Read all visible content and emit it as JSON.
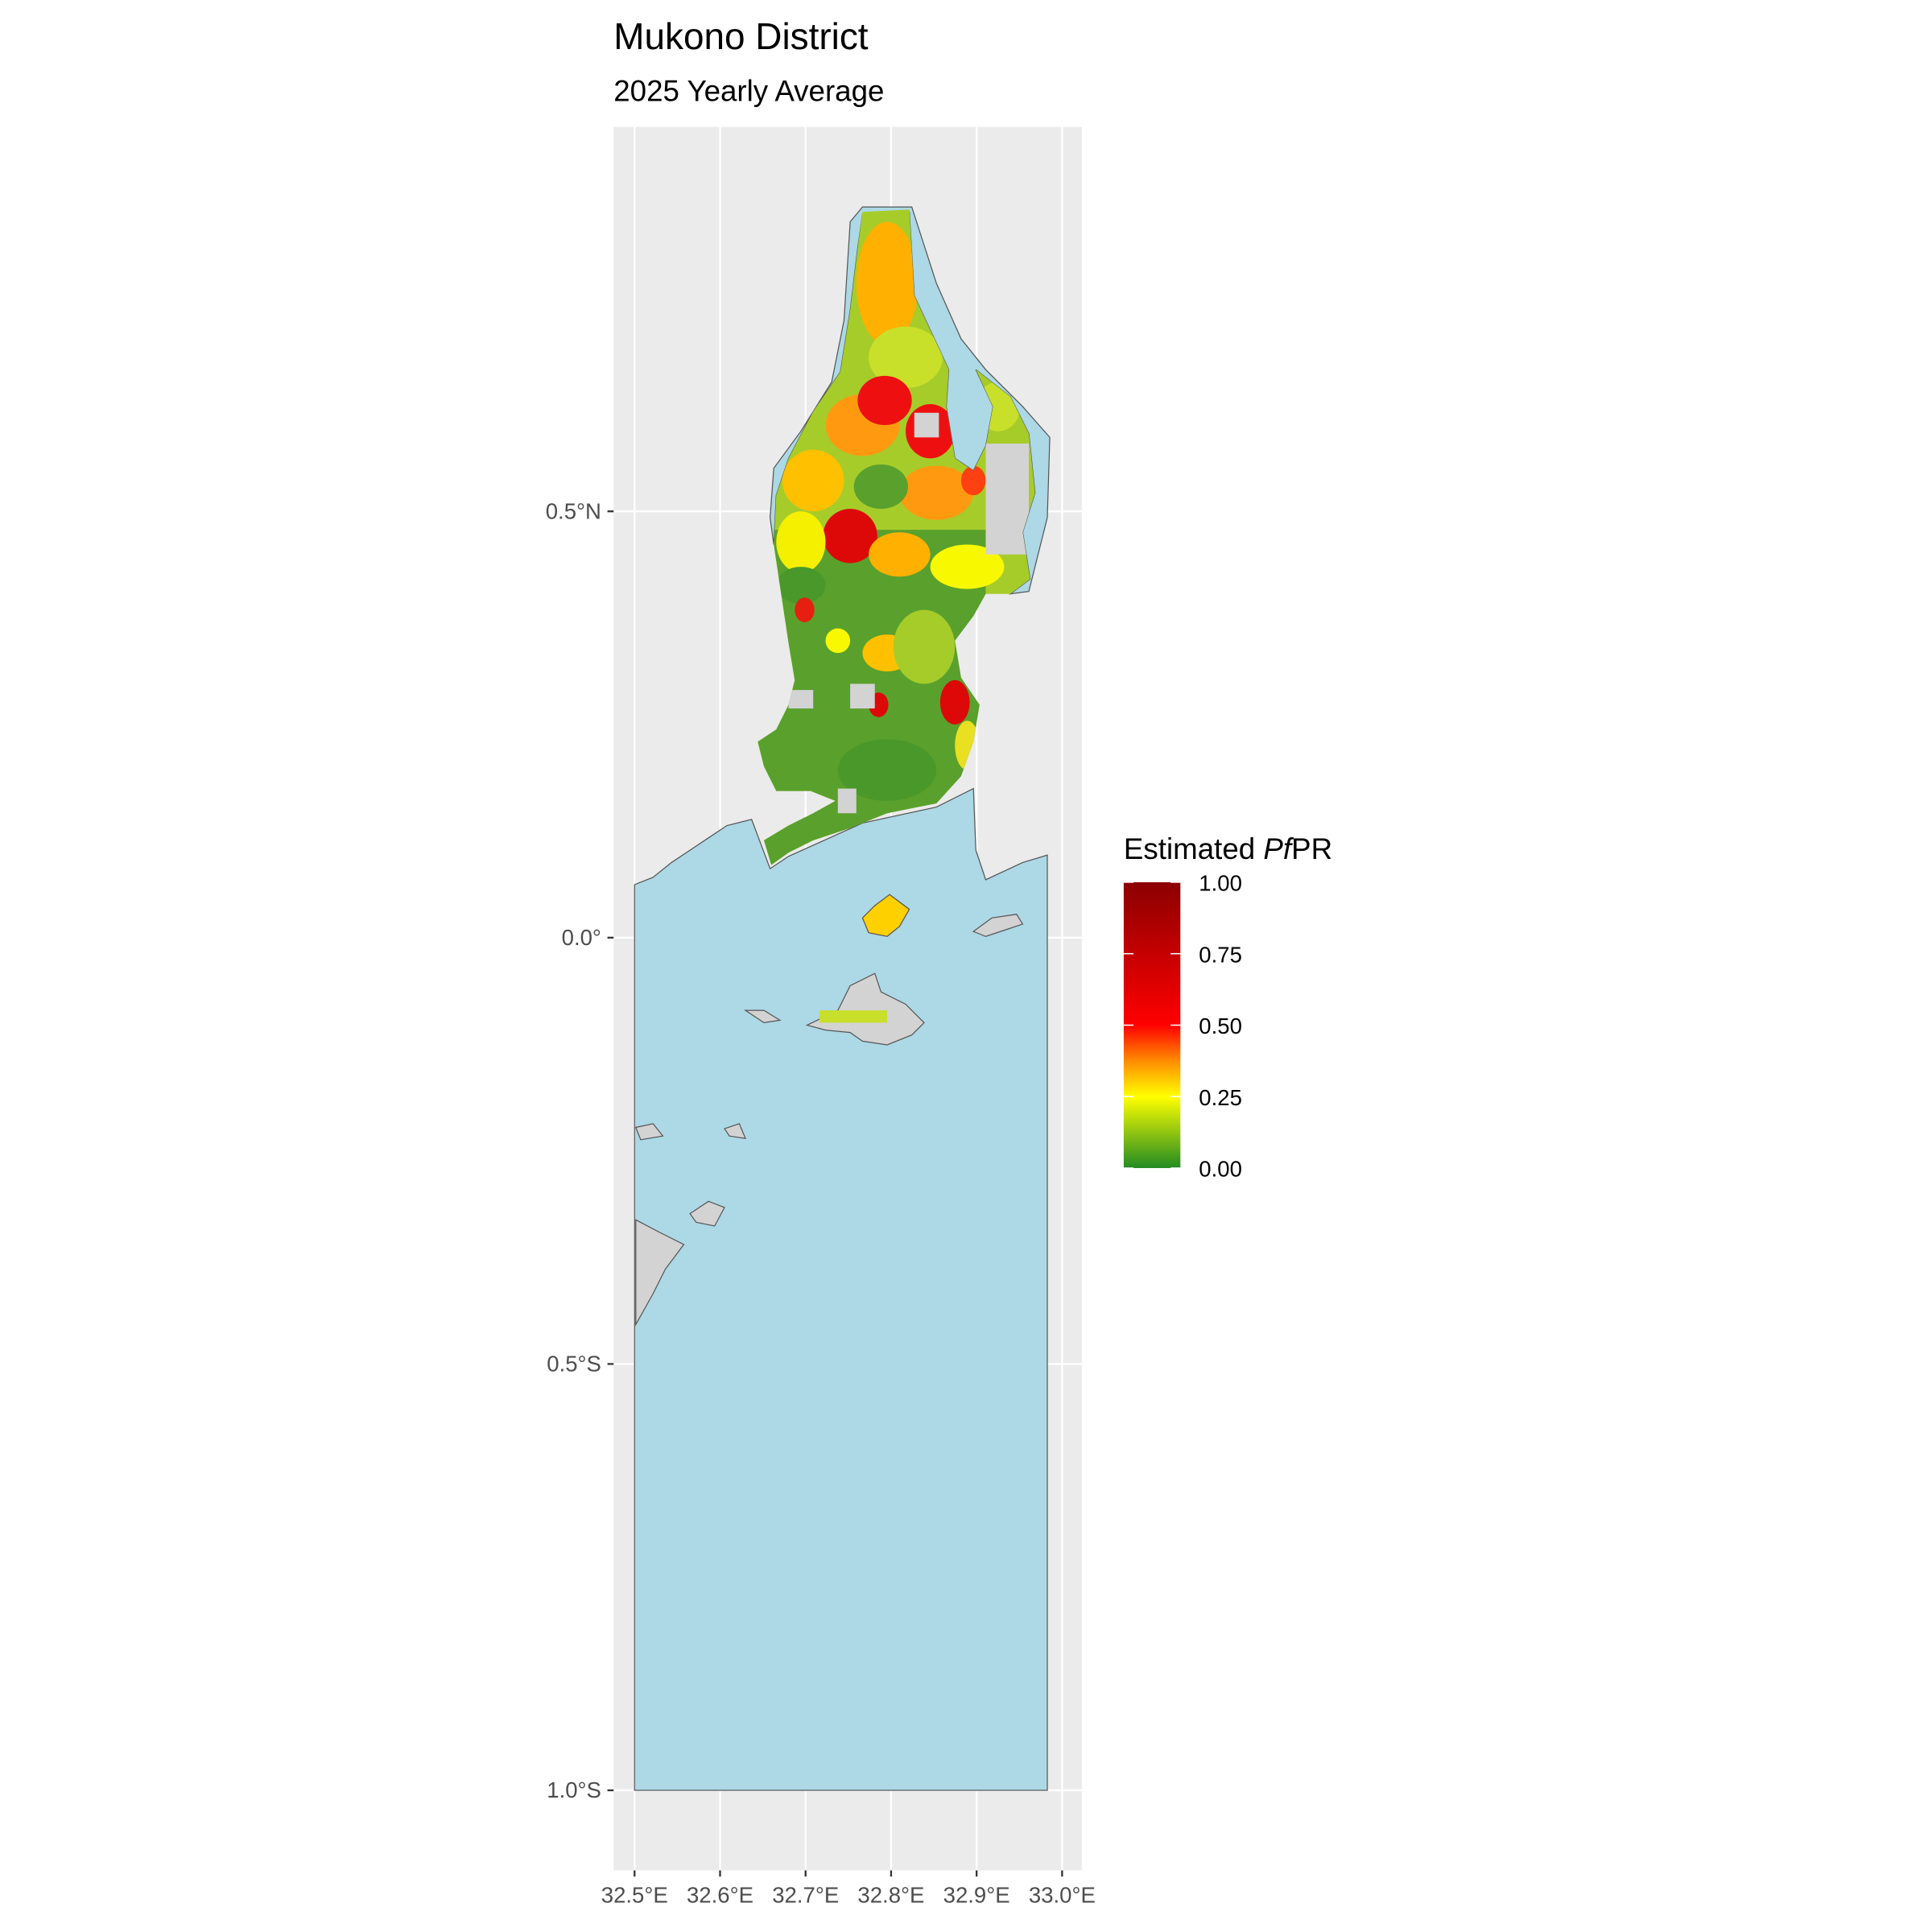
{
  "chart_data": {
    "type": "heatmap",
    "title": "Mukono District",
    "subtitle": "2025 Yearly Average",
    "xlabel": "",
    "ylabel": "",
    "x_ticks": [
      {
        "value": 32.5,
        "label": "32.5°E"
      },
      {
        "value": 32.6,
        "label": "32.6°E"
      },
      {
        "value": 32.7,
        "label": "32.7°E"
      },
      {
        "value": 32.8,
        "label": "32.8°E"
      },
      {
        "value": 32.9,
        "label": "32.9°E"
      },
      {
        "value": 33.0,
        "label": "33.0°E"
      }
    ],
    "y_ticks": [
      {
        "value": 0.5,
        "label": "0.5°N"
      },
      {
        "value": 0.0,
        "label": "0.0°"
      },
      {
        "value": -0.5,
        "label": "0.5°S"
      },
      {
        "value": -1.0,
        "label": "1.0°S"
      }
    ],
    "xlim": [
      32.48,
      33.0
    ],
    "ylim": [
      -1.05,
      0.97
    ],
    "grid": true,
    "legend": {
      "title_prefix": "Estimated ",
      "title_italic": "Pf",
      "title_suffix": "PR",
      "placement": "right",
      "range": [
        0,
        1
      ],
      "breaks": [
        {
          "value": 1.0,
          "label": "1.00"
        },
        {
          "value": 0.75,
          "label": "0.75"
        },
        {
          "value": 0.5,
          "label": "0.50"
        },
        {
          "value": 0.25,
          "label": "0.25"
        },
        {
          "value": 0.0,
          "label": "0.00"
        }
      ],
      "colors": [
        {
          "stop": 0.0,
          "color": "#228b22"
        },
        {
          "stop": 0.25,
          "color": "#ffff00"
        },
        {
          "stop": 0.5,
          "color": "#ff0000"
        },
        {
          "stop": 1.0,
          "color": "#8b0000"
        }
      ]
    },
    "colors": {
      "water": "#add8e6",
      "no_data": "#d3d3d3",
      "panel_bg": "#ebebeb",
      "grid": "#ffffff"
    }
  }
}
